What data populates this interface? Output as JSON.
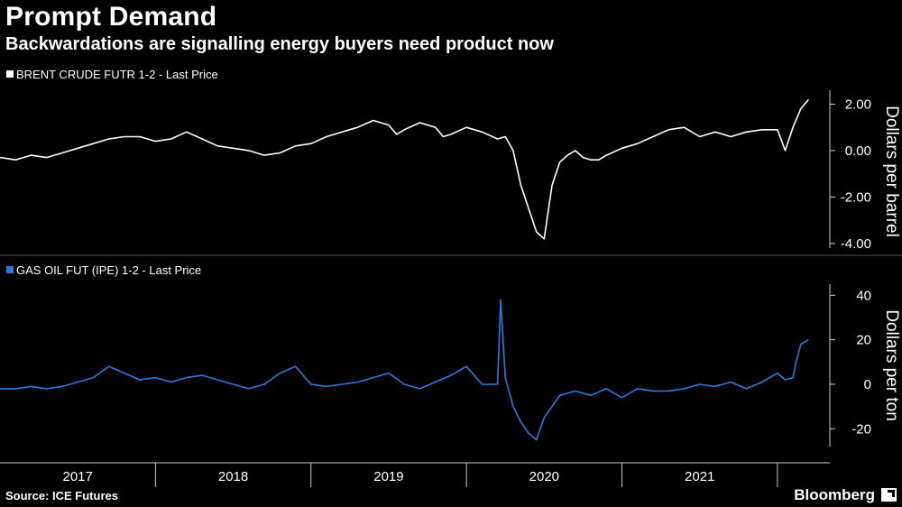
{
  "header": {
    "title": "Prompt Demand",
    "subtitle": "Backwardations are signalling energy buyers need product now"
  },
  "footer": {
    "source": "Source: ICE Futures",
    "brand": "Bloomberg"
  },
  "colors": {
    "background": "#000000",
    "brent_line": "#ffffff",
    "gasoil_line": "#2b7ce0",
    "axis": "#cccccc"
  },
  "chart_data": [
    {
      "type": "line",
      "legend": "BRENT CRUDE FUTR 1-2 - Last Price",
      "ylabel": "Dollars per barrel",
      "ylim": [
        -4.2,
        2.6
      ],
      "yticks": [
        2,
        0,
        -2,
        -4
      ],
      "ytick_labels": [
        "2.00",
        "0.00",
        "-2.00",
        "-4.00"
      ],
      "x_range": [
        2016.5,
        2021.75
      ],
      "series": [
        {
          "x": [
            2016.5,
            2016.6,
            2016.7,
            2016.8,
            2016.9,
            2017.0,
            2017.1,
            2017.2,
            2017.3,
            2017.4,
            2017.5,
            2017.6,
            2017.7,
            2017.8,
            2017.9,
            2018.0,
            2018.1,
            2018.2,
            2018.3,
            2018.4,
            2018.5,
            2018.6,
            2018.7,
            2018.8,
            2018.9,
            2019.0,
            2019.05,
            2019.1,
            2019.2,
            2019.3,
            2019.35,
            2019.4,
            2019.5,
            2019.6,
            2019.7,
            2019.75,
            2019.8,
            2019.85,
            2019.9,
            2019.95,
            2020.0,
            2020.05,
            2020.1,
            2020.15,
            2020.2,
            2020.25,
            2020.3,
            2020.35,
            2020.4,
            2020.5,
            2020.6,
            2020.7,
            2020.8,
            2020.9,
            2021.0,
            2021.1,
            2021.2,
            2021.3,
            2021.4,
            2021.5,
            2021.55,
            2021.6,
            2021.65,
            2021.7
          ],
          "y": [
            -0.3,
            -0.4,
            -0.2,
            -0.3,
            -0.1,
            0.1,
            0.3,
            0.5,
            0.6,
            0.6,
            0.4,
            0.5,
            0.8,
            0.5,
            0.2,
            0.1,
            0.0,
            -0.2,
            -0.1,
            0.2,
            0.3,
            0.6,
            0.8,
            1.0,
            1.3,
            1.1,
            0.7,
            0.9,
            1.2,
            1.0,
            0.6,
            0.7,
            1.0,
            0.8,
            0.5,
            0.6,
            0.0,
            -1.5,
            -2.5,
            -3.5,
            -3.8,
            -1.5,
            -0.5,
            -0.2,
            0.0,
            -0.3,
            -0.4,
            -0.4,
            -0.2,
            0.1,
            0.3,
            0.6,
            0.9,
            1.0,
            0.6,
            0.8,
            0.6,
            0.8,
            0.9,
            0.9,
            0.0,
            1.0,
            1.8,
            2.2
          ],
          "name": "BRENT CRUDE FUTR 1-2 - Last Price"
        }
      ]
    },
    {
      "type": "line",
      "legend": "GAS OIL FUT (IPE) 1-2 - Last Price",
      "ylabel": "Dollars per ton",
      "ylim": [
        -28,
        45
      ],
      "yticks": [
        40,
        20,
        0,
        -20
      ],
      "ytick_labels": [
        "40",
        "20",
        "0",
        "-20"
      ],
      "x_range": [
        2016.5,
        2021.75
      ],
      "series": [
        {
          "x": [
            2016.5,
            2016.6,
            2016.7,
            2016.8,
            2016.9,
            2016.95,
            2017.0,
            2017.1,
            2017.2,
            2017.3,
            2017.4,
            2017.5,
            2017.6,
            2017.7,
            2017.8,
            2017.9,
            2018.0,
            2018.1,
            2018.2,
            2018.3,
            2018.4,
            2018.5,
            2018.6,
            2018.7,
            2018.8,
            2018.9,
            2019.0,
            2019.1,
            2019.2,
            2019.3,
            2019.4,
            2019.5,
            2019.6,
            2019.7,
            2019.72,
            2019.75,
            2019.8,
            2019.85,
            2019.9,
            2019.95,
            2020.0,
            2020.1,
            2020.2,
            2020.3,
            2020.4,
            2020.5,
            2020.6,
            2020.7,
            2020.8,
            2020.9,
            2021.0,
            2021.1,
            2021.2,
            2021.3,
            2021.4,
            2021.5,
            2021.55,
            2021.6,
            2021.62,
            2021.65,
            2021.7
          ],
          "y": [
            -2,
            -2,
            -1,
            -2,
            -1,
            0,
            1,
            3,
            8,
            5,
            2,
            3,
            1,
            3,
            4,
            2,
            0,
            -2,
            0,
            5,
            8,
            0,
            -1,
            0,
            1,
            3,
            5,
            0,
            -2,
            1,
            4,
            8,
            0,
            0,
            38,
            3,
            -10,
            -17,
            -22,
            -25,
            -15,
            -5,
            -3,
            -5,
            -2,
            -6,
            -2,
            -3,
            -3,
            -2,
            0,
            -1,
            1,
            -2,
            1,
            5,
            2,
            3,
            10,
            18,
            20
          ],
          "name": "GAS OIL FUT (IPE) 1-2 - Last Price"
        }
      ]
    }
  ],
  "x_axis": {
    "labels": [
      "2017",
      "2018",
      "2019",
      "2020",
      "2021"
    ],
    "label_centers": [
      2017.0,
      2018.0,
      2019.0,
      2020.0,
      2021.0
    ],
    "dividers": [
      2017.5,
      2018.5,
      2019.5,
      2020.5,
      2021.5
    ]
  }
}
